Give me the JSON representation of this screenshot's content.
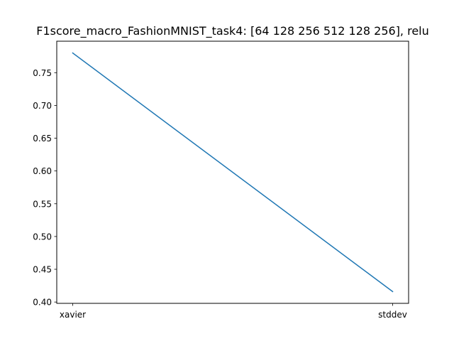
{
  "chart_data": {
    "type": "line",
    "title": "F1score_macro_FashionMNIST_task4: [64 128 256 512 128 256], relu",
    "xlabel": "",
    "ylabel": "",
    "categories": [
      "xavier",
      "stddev"
    ],
    "series": [
      {
        "values": [
          0.78,
          0.416
        ],
        "color": "#1f77b4"
      }
    ],
    "ylim": [
      0.398,
      0.798
    ],
    "yticks": [
      0.4,
      0.45,
      0.5,
      0.55,
      0.6,
      0.65,
      0.7,
      0.75
    ],
    "ytick_labels": [
      "0.40",
      "0.45",
      "0.50",
      "0.55",
      "0.60",
      "0.65",
      "0.70",
      "0.75"
    ],
    "grid": false,
    "legend": "none"
  }
}
